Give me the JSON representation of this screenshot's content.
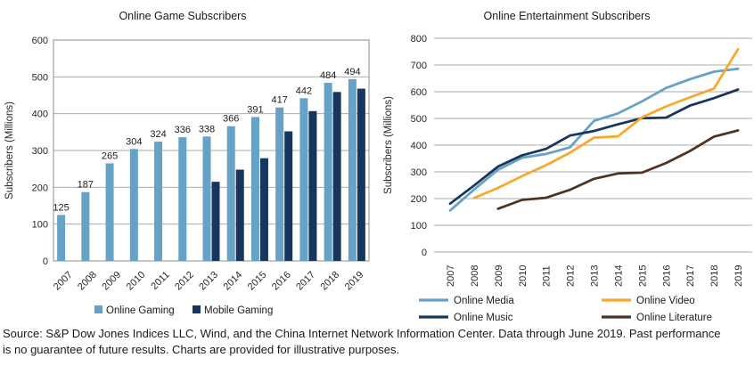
{
  "source_note": "Source: S&P Dow Jones Indices LLC, Wind, and the China Internet Network Information Center.  Data through June 2019.  Past performance\nis no guarantee of future results.  Charts are provided for illustrative purposes.",
  "colors": {
    "light_blue": "#66A1C6",
    "navy": "#17365D",
    "orange": "#F8A92B",
    "brown": "#4F3222",
    "gridline": "#ABABAB",
    "plot_border": "#8C8C8C",
    "text": "#262626",
    "title_text": "#1a1a1a"
  },
  "chart_data": [
    {
      "type": "bar",
      "title": "Online Game Subscribers",
      "ylabel": "Subscribers (Millions)",
      "ylim": [
        0,
        600
      ],
      "ytick_step": 100,
      "yticks": [
        0,
        100,
        200,
        300,
        400,
        500,
        600
      ],
      "grid": true,
      "legend_position": "bottom",
      "categories": [
        "2007",
        "2008",
        "2009",
        "2010",
        "2011",
        "2012",
        "2013",
        "2014",
        "2015",
        "2016",
        "2017",
        "2018",
        "2019"
      ],
      "series": [
        {
          "name": "Online Gaming",
          "color": "#66A1C6",
          "values": [
            125,
            187,
            265,
            304,
            324,
            336,
            338,
            366,
            391,
            417,
            442,
            484,
            494
          ],
          "data_labels": [
            125,
            187,
            265,
            304,
            324,
            336,
            338,
            366,
            391,
            417,
            442,
            484,
            494
          ]
        },
        {
          "name": "Mobile Gaming",
          "color": "#17365D",
          "values": [
            null,
            null,
            null,
            null,
            null,
            null,
            215,
            248,
            279,
            352,
            407,
            459,
            468
          ],
          "data_labels": null
        }
      ]
    },
    {
      "type": "line",
      "title": "Online Entertainment Subscribers",
      "ylabel": "Subscribers (Millions)",
      "ylim": [
        0,
        800
      ],
      "ytick_step": 100,
      "yticks": [
        0,
        100,
        200,
        300,
        400,
        500,
        600,
        700,
        800
      ],
      "grid": true,
      "legend_position": "bottom",
      "x": [
        "2007",
        "2008",
        "2009",
        "2010",
        "2011",
        "2012",
        "2013",
        "2014",
        "2015",
        "2016",
        "2017",
        "2018",
        "2019"
      ],
      "series": [
        {
          "name": "Online Media",
          "color": "#66A1C6",
          "values": [
            155,
            234,
            308,
            353,
            367,
            392,
            491,
            519,
            564,
            614,
            647,
            675,
            686
          ]
        },
        {
          "name": "Online Video",
          "color": "#F8A92B",
          "values": [
            null,
            202,
            240,
            284,
            325,
            372,
            428,
            433,
            504,
            545,
            579,
            612,
            759
          ]
        },
        {
          "name": "Online Music",
          "color": "#17365D",
          "values": [
            181,
            249,
            320,
            362,
            386,
            436,
            453,
            478,
            501,
            503,
            548,
            576,
            608
          ]
        },
        {
          "name": "Online Literature",
          "color": "#4F3222",
          "values": [
            null,
            null,
            162,
            195,
            203,
            233,
            274,
            294,
            297,
            333,
            378,
            432,
            455
          ]
        }
      ]
    }
  ]
}
